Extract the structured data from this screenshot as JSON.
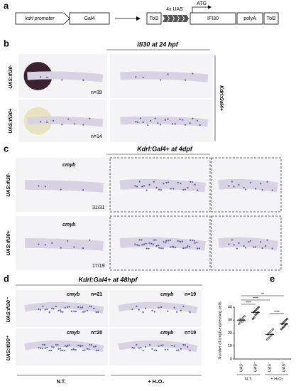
{
  "panels": {
    "a": {
      "label": "a",
      "construct": {
        "promoter": "kdrl promoter",
        "driver": "Gal4",
        "tol2_left": "Tol2",
        "uas": "4x UAS",
        "atg": "ATG",
        "gene": "IFI30",
        "polya": "polyA",
        "tol2_right": "Tol2"
      }
    },
    "b": {
      "label": "b",
      "title": "ifi30 at 24 hpf",
      "side_label": "Kdrl:Gal4+",
      "rows": [
        {
          "label": "UAS:ifi30-",
          "n": "n=39"
        },
        {
          "label": "UAS:ifi30+",
          "n": "n=14"
        }
      ]
    },
    "c": {
      "label": "c",
      "title": "Kdrl:Gal4+ at 4dpf",
      "rows": [
        {
          "label": "UAS:ifi30-",
          "marker": "cmyb",
          "ratio": "31/31"
        },
        {
          "label": "UAS:ifi30+",
          "marker": "cmyb",
          "ratio": "17/19"
        }
      ]
    },
    "d": {
      "label": "d",
      "title": "Kdrl:Gal4+ at 48hpf",
      "columns": [
        "N.T.",
        "+ H₂O₂"
      ],
      "rows": [
        {
          "label": "UAS:ifi30⁻",
          "cells": [
            {
              "marker": "cmyb",
              "n": "n=21"
            },
            {
              "marker": "cmyb",
              "n": "n=19"
            }
          ]
        },
        {
          "label": "UAS:ifi30⁺",
          "cells": [
            {
              "marker": "cmyb",
              "n": "n=20"
            },
            {
              "marker": "cmyb",
              "n": "n=19"
            }
          ]
        }
      ]
    },
    "e": {
      "label": "e"
    }
  },
  "chart_data": {
    "type": "scatter",
    "y_label": "Number of cmyb-expressing cells",
    "categories": [
      "UAS⁻",
      "UAS⁺",
      "UAS⁻",
      "UAS⁺"
    ],
    "groups": [
      "N.T.",
      "+ H₂O₂"
    ],
    "points": [
      [
        27,
        28,
        29,
        29,
        30,
        30,
        31,
        31,
        32,
        33
      ],
      [
        31,
        32,
        34,
        35,
        36,
        36,
        37,
        38,
        39,
        40
      ],
      [
        15,
        16,
        17,
        18,
        19,
        19,
        20,
        21,
        22,
        23
      ],
      [
        23,
        24,
        25,
        26,
        27,
        27,
        28,
        29,
        30,
        31
      ]
    ],
    "means": [
      30,
      36,
      19,
      27
    ],
    "color": "#000000",
    "ylim": [
      0,
      40
    ],
    "yticks": [
      0,
      10,
      20,
      30,
      40
    ],
    "comparisons": [
      {
        "from": 2,
        "to": 3,
        "label": "****"
      },
      {
        "from": 0,
        "to": 1,
        "label": "****"
      },
      {
        "from": 0,
        "to": 2,
        "label": "****"
      },
      {
        "from": 0,
        "to": 3,
        "label": "**"
      }
    ]
  }
}
